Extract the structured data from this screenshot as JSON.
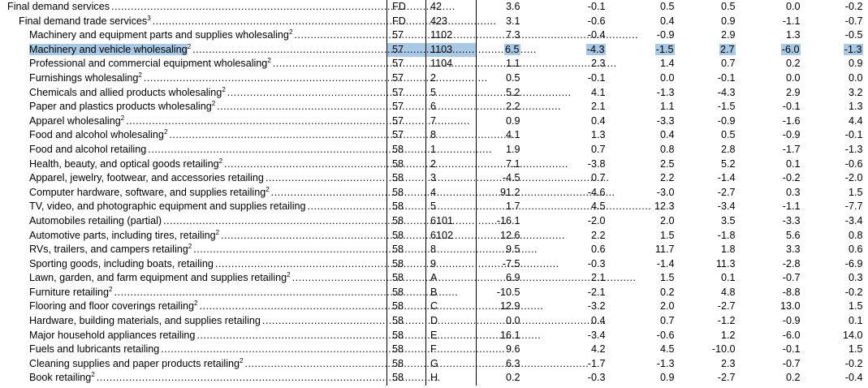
{
  "rows": [
    {
      "label": "Final demand services",
      "sup": "",
      "group": "FD",
      "code": "42",
      "v": [
        "3.6",
        "-0.1",
        "0.5",
        "0.5",
        "0.0",
        "-0.2"
      ],
      "indent": 0
    },
    {
      "label": "Final demand trade services",
      "sup": "3",
      "group": "FD",
      "code": "423",
      "v": [
        "3.1",
        "-0.6",
        "0.4",
        "0.9",
        "-1.1",
        "-0.7"
      ],
      "indent": 1
    },
    {
      "label": "Machinery and equipment parts and supplies wholesaling",
      "sup": "2",
      "group": "57",
      "code": "1102",
      "v": [
        "7.3",
        "-0.4",
        "-0.9",
        "2.9",
        "1.3",
        "-0.5"
      ],
      "indent": 2
    },
    {
      "label": "Machinery and vehicle wholesaling",
      "sup": "2",
      "group": "57",
      "code": "1103",
      "v": [
        "6.5",
        "-4.3",
        "-1.5",
        "2.7",
        "-6.0",
        "-1.3"
      ],
      "indent": 2,
      "highlight": true
    },
    {
      "label": "Professional and commercial equipment wholesaling",
      "sup": "2",
      "group": "57",
      "code": "1104",
      "v": [
        "1.1",
        "2.3",
        "1.4",
        "0.7",
        "0.2",
        "0.9"
      ],
      "indent": 2
    },
    {
      "label": "Furnishings wholesaling",
      "sup": "2",
      "group": "57",
      "code": "2",
      "v": [
        "0.5",
        "-0.1",
        "0.0",
        "-0.1",
        "0.0",
        "0.0"
      ],
      "indent": 2
    },
    {
      "label": "Chemicals and allied products wholesaling",
      "sup": "2",
      "group": "57",
      "code": "5",
      "v": [
        "5.2",
        "4.1",
        "-1.3",
        "-4.3",
        "2.9",
        "3.2"
      ],
      "indent": 2
    },
    {
      "label": "Paper and plastics products wholesaling",
      "sup": "2",
      "group": "57",
      "code": "6",
      "v": [
        "2.2",
        "2.1",
        "1.1",
        "-1.5",
        "-0.1",
        "1.3"
      ],
      "indent": 2
    },
    {
      "label": "Apparel wholesaling",
      "sup": "2",
      "group": "57",
      "code": "7",
      "v": [
        "0.9",
        "0.4",
        "-3.3",
        "-0.9",
        "-1.6",
        "4.4"
      ],
      "indent": 2
    },
    {
      "label": "Food and alcohol wholesaling",
      "sup": "2",
      "group": "57",
      "code": "8",
      "v": [
        "4.1",
        "1.3",
        "0.4",
        "0.5",
        "-0.9",
        "-0.1"
      ],
      "indent": 2
    },
    {
      "label": "Food and alcohol retailing",
      "sup": "",
      "group": "58",
      "code": "1",
      "v": [
        "1.9",
        "0.7",
        "0.8",
        "2.8",
        "-1.7",
        "-1.3"
      ],
      "indent": 2
    },
    {
      "label": "Health, beauty, and optical goods retailing",
      "sup": "2",
      "group": "58",
      "code": "2",
      "v": [
        "7.1",
        "-3.8",
        "2.5",
        "5.2",
        "0.1",
        "-0.6"
      ],
      "indent": 2
    },
    {
      "label": "Apparel, jewelry, footwear, and accessories retailing",
      "sup": "",
      "group": "58",
      "code": "3",
      "v": [
        "-4.5",
        "0.7",
        "2.2",
        "-1.4",
        "-0.2",
        "-2.0"
      ],
      "indent": 2
    },
    {
      "label": "Computer hardware, software, and supplies retailing",
      "sup": "2",
      "group": "58",
      "code": "4",
      "v": [
        "91.2",
        "-4.6",
        "-3.0",
        "-2.7",
        "0.3",
        "1.5"
      ],
      "indent": 2
    },
    {
      "label": "TV, video, and photographic equipment and supplies retailing",
      "sup": "",
      "group": "58",
      "code": "5",
      "v": [
        "1.7",
        "4.5",
        "12.3",
        "-3.4",
        "-1.1",
        "-7.7"
      ],
      "indent": 2
    },
    {
      "label": "Automobiles retailing (partial)",
      "sup": "",
      "group": "58",
      "code": "6101",
      "v": [
        "-16.1",
        "-2.0",
        "2.0",
        "3.5",
        "-3.3",
        "-3.4"
      ],
      "indent": 2
    },
    {
      "label": "Automotive parts, including tires, retailing",
      "sup": "2",
      "group": "58",
      "code": "6102",
      "v": [
        "12.6",
        "2.2",
        "1.5",
        "-1.8",
        "5.6",
        "0.8"
      ],
      "indent": 2
    },
    {
      "label": "RVs, trailers, and campers retailing",
      "sup": "2",
      "group": "58",
      "code": "8",
      "v": [
        "9.5",
        "0.6",
        "11.7",
        "1.8",
        "3.3",
        "0.6"
      ],
      "indent": 2
    },
    {
      "label": "Sporting goods, including boats, retailing",
      "sup": "",
      "group": "58",
      "code": "9",
      "v": [
        "-7.5",
        "-0.3",
        "-1.4",
        "11.3",
        "-2.8",
        "-6.9"
      ],
      "indent": 2
    },
    {
      "label": "Lawn, garden, and farm equipment and supplies retailing",
      "sup": "2",
      "group": "58",
      "code": "A",
      "v": [
        "6.9",
        "2.1",
        "1.5",
        "0.1",
        "-0.7",
        "0.3"
      ],
      "indent": 2
    },
    {
      "label": "Furniture retailing",
      "sup": "2",
      "group": "58",
      "code": "B",
      "v": [
        "-10.5",
        "-2.1",
        "0.2",
        "4.8",
        "-8.8",
        "-0.2"
      ],
      "indent": 2
    },
    {
      "label": "Flooring and floor coverings retailing",
      "sup": "2",
      "group": "58",
      "code": "C",
      "v": [
        "12.9",
        "-3.2",
        "2.0",
        "-2.7",
        "13.0",
        "1.5"
      ],
      "indent": 2
    },
    {
      "label": "Hardware, building materials, and supplies retailing",
      "sup": "",
      "group": "58",
      "code": "D",
      "v": [
        "0.0",
        "0.4",
        "0.7",
        "-1.2",
        "-0.9",
        "0.1"
      ],
      "indent": 2
    },
    {
      "label": "Major household appliances retailing",
      "sup": "",
      "group": "58",
      "code": "E",
      "v": [
        "16.1",
        "-3.4",
        "-0.6",
        "1.2",
        "-6.0",
        "14.0"
      ],
      "indent": 2
    },
    {
      "label": "Fuels and lubricants retailing",
      "sup": "",
      "group": "58",
      "code": "F",
      "v": [
        "9.6",
        "4.2",
        "4.5",
        "-10.0",
        "-0.1",
        "1.5"
      ],
      "indent": 2
    },
    {
      "label": "Cleaning supplies and paper products retailing",
      "sup": "2",
      "group": "58",
      "code": "G",
      "v": [
        "6.3",
        "-1.7",
        "-1.3",
        "2.3",
        "-0.7",
        "-0.2"
      ],
      "indent": 2
    },
    {
      "label": "Book retailing",
      "sup": "2",
      "group": "58",
      "code": "H",
      "v": [
        "0.2",
        "-0.3",
        "0.9",
        "-2.7",
        "0.2",
        "-0.4"
      ],
      "indent": 2
    }
  ],
  "colors": {
    "highlight": "#a9c8e4"
  }
}
